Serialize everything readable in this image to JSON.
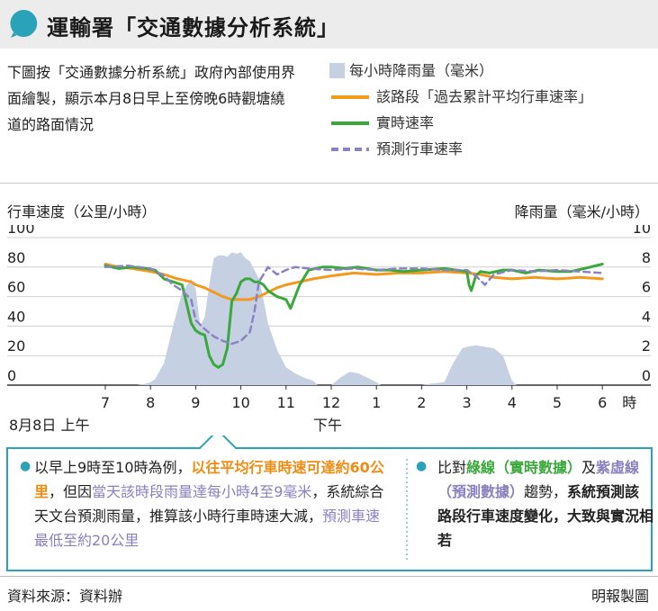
{
  "header": {
    "title": "運輸署「交通數據分析系統」"
  },
  "intro": {
    "text": "下圖按「交通數據分析系統」政府內部使用界面繪製，顯示本月8日早上至傍晚6時觀塘繞道的路面情況"
  },
  "legend": {
    "rain": "每小時降雨量（毫米）",
    "historical": "該路段「過去累計平均行車速率」",
    "realtime": "實時速率",
    "predicted": "預測行車速率"
  },
  "axes": {
    "left_title": "行車速度（公里/小時）",
    "right_title": "降雨量（毫米/小時）"
  },
  "labels": {
    "date": "8月8日 上午",
    "pm": "下午"
  },
  "note_left": {
    "p1": "以早上9時至10時為例，",
    "p2": "以往平均行車時速可達約60公里",
    "p3": "，但因",
    "p4": "當天該時段雨量達每小時4至9毫米",
    "p5": "，系統綜合天文台預測雨量，推算該小時行車時速大減，",
    "p6": "預測車速最低至約20公里"
  },
  "note_right": {
    "p1": "比對",
    "p2": "綠線（實時數據）",
    "p3": "及",
    "p4": "紫虛線（預測數據）",
    "p5": "趨勢，",
    "p6": "系統預測該路段行車速度變化，大致與實況相若"
  },
  "footer": {
    "source": "資料來源：資料辦",
    "credit": "明報製圖"
  },
  "chart_data": {
    "type": "line",
    "x_ticks": [
      "7",
      "8",
      "9",
      "10",
      "11",
      "12",
      "1",
      "2",
      "3",
      "4",
      "5",
      "6",
      "時"
    ],
    "x_range": [
      6.0,
      18.3
    ],
    "y_left": {
      "ticks": [
        0,
        20,
        40,
        60,
        80,
        100
      ],
      "range": [
        0,
        100
      ]
    },
    "y_right": {
      "ticks": [
        0,
        2,
        4,
        6,
        8,
        10
      ],
      "range": [
        0,
        10
      ]
    },
    "colors": {
      "rain": "#c5d0e2",
      "historical": "#f29a1e",
      "realtime": "#3aa83a",
      "predicted": "#8a83c2",
      "accent": "#2aa3b8"
    },
    "series": [
      {
        "name": "每小時降雨量（毫米）",
        "axis": "right",
        "type": "area",
        "x": [
          7.7,
          7.9,
          8.0,
          8.1,
          8.3,
          8.5,
          8.7,
          8.9,
          9.0,
          9.1,
          9.2,
          9.3,
          9.4,
          9.5,
          9.6,
          9.7,
          9.8,
          9.9,
          10.0,
          10.1,
          10.2,
          10.3,
          10.4,
          10.5,
          10.6,
          10.8,
          11.0,
          11.2,
          11.4,
          11.6,
          11.7,
          12.0,
          12.2,
          12.4,
          12.6,
          12.8,
          13.0,
          13.1,
          14.0,
          14.2,
          14.5,
          14.7,
          14.9,
          15.0,
          15.2,
          15.4,
          15.6,
          15.8,
          16.0,
          16.1,
          18.0
        ],
        "y": [
          0,
          0.1,
          0.2,
          0.4,
          1.5,
          4.0,
          6.3,
          7.2,
          6.5,
          4.0,
          4.6,
          6.8,
          8.6,
          8.8,
          8.8,
          8.7,
          9.0,
          8.9,
          9.0,
          8.6,
          8.4,
          7.8,
          7.2,
          5.8,
          4.2,
          2.4,
          1.2,
          0.8,
          0.5,
          0.3,
          0,
          0,
          0.5,
          0.9,
          0.8,
          0.5,
          0.2,
          0,
          0,
          0.1,
          0.2,
          1.5,
          2.5,
          2.6,
          2.7,
          2.6,
          2.5,
          2.0,
          0.3,
          0,
          0
        ]
      },
      {
        "name": "該路段「過去累計平均行車速率」",
        "axis": "left",
        "type": "line",
        "x": [
          7.0,
          7.3,
          7.6,
          8.0,
          8.3,
          8.6,
          8.9,
          9.0,
          9.2,
          9.4,
          9.6,
          9.8,
          10.0,
          10.2,
          10.4,
          10.6,
          10.8,
          11.0,
          11.3,
          11.6,
          12.0,
          12.5,
          13.0,
          13.5,
          14.0,
          14.5,
          15.0,
          15.3,
          15.6,
          16.0,
          16.5,
          17.0,
          17.5,
          18.0
        ],
        "y": [
          82,
          80,
          79,
          77,
          75,
          72,
          70,
          68,
          66,
          63,
          60,
          58,
          58,
          58,
          60,
          63,
          66,
          68,
          70,
          72,
          74,
          76,
          75,
          76,
          76,
          77,
          76,
          75,
          73,
          72,
          73,
          72,
          73,
          72
        ]
      },
      {
        "name": "實時速率",
        "axis": "left",
        "type": "line",
        "x": [
          7.0,
          7.3,
          7.6,
          7.9,
          8.1,
          8.3,
          8.5,
          8.7,
          8.8,
          8.9,
          9.0,
          9.1,
          9.2,
          9.3,
          9.4,
          9.5,
          9.6,
          9.7,
          9.8,
          9.9,
          10.0,
          10.1,
          10.2,
          10.3,
          10.4,
          10.5,
          10.6,
          10.8,
          11.0,
          11.1,
          11.3,
          11.5,
          11.8,
          12.0,
          12.3,
          12.6,
          13.0,
          13.3,
          13.6,
          14.0,
          14.5,
          15.0,
          15.05,
          15.1,
          15.2,
          15.3,
          15.5,
          15.8,
          16.0,
          16.3,
          16.6,
          17.0,
          17.3,
          17.6,
          18.0
        ],
        "y": [
          81,
          79,
          80,
          79,
          78,
          72,
          70,
          68,
          55,
          42,
          37,
          35,
          34,
          20,
          14,
          12,
          14,
          25,
          57,
          62,
          70,
          72,
          72,
          70,
          70,
          68,
          64,
          60,
          58,
          52,
          68,
          78,
          80,
          80,
          79,
          80,
          78,
          78,
          77,
          78,
          79,
          77,
          68,
          64,
          74,
          77,
          76,
          78,
          78,
          76,
          78,
          77,
          77,
          79,
          82
        ]
      },
      {
        "name": "預測行車速率",
        "axis": "left",
        "type": "dashed",
        "x": [
          7.0,
          7.5,
          8.0,
          8.3,
          8.5,
          8.7,
          8.9,
          9.0,
          9.2,
          9.4,
          9.6,
          9.8,
          10.0,
          10.2,
          10.3,
          10.4,
          10.6,
          10.8,
          11.0,
          11.2,
          11.5,
          12.0,
          12.5,
          13.0,
          13.5,
          14.0,
          14.5,
          15.0,
          15.2,
          15.4,
          15.6,
          16.0,
          16.5,
          17.0,
          17.5,
          18.0
        ],
        "y": [
          80,
          81,
          79,
          74,
          68,
          64,
          58,
          44,
          38,
          33,
          30,
          28,
          30,
          36,
          50,
          70,
          80,
          75,
          78,
          80,
          79,
          78,
          79,
          78,
          79,
          79,
          78,
          78,
          74,
          68,
          75,
          78,
          77,
          78,
          77,
          76
        ]
      }
    ]
  }
}
